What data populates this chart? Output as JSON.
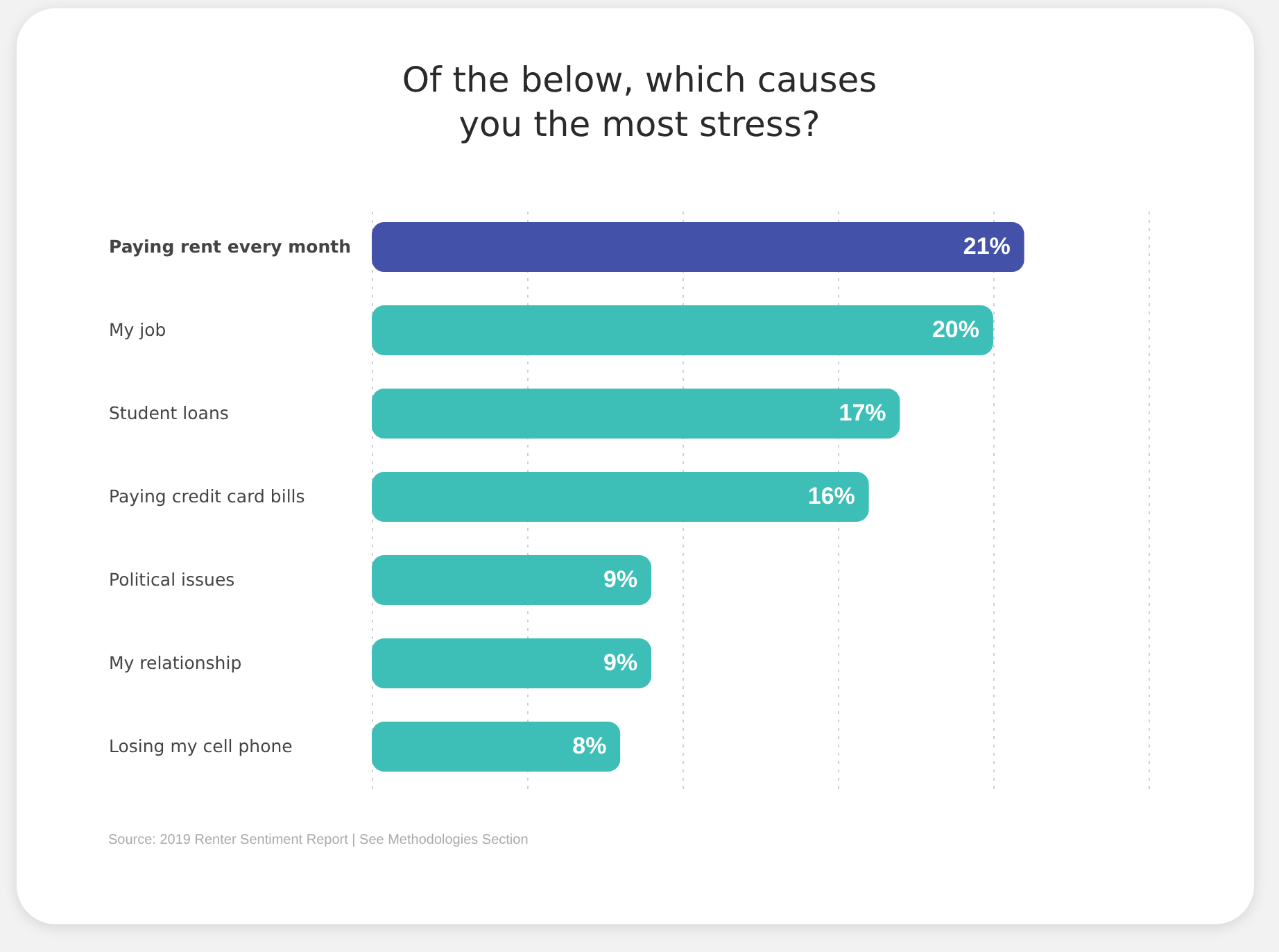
{
  "chart_data": {
    "type": "bar",
    "orientation": "horizontal",
    "title": "Of the below, which causes you the most stress?",
    "categories": [
      "Paying rent every month",
      "My job",
      "Student loans",
      "Paying credit card bills",
      "Political issues",
      "My relationship",
      "Losing my cell phone"
    ],
    "values": [
      21,
      20,
      17,
      16,
      9,
      9,
      8
    ],
    "colors": [
      "#4351a8",
      "#3dbfb8",
      "#3dbfb8",
      "#3dbfb8",
      "#3dbfb8",
      "#3dbfb8",
      "#3dbfb8"
    ],
    "value_labels": [
      "21%",
      "20%",
      "17%",
      "16%",
      "9%",
      "9%",
      "8%"
    ],
    "tick_labels": "y",
    "grid": "x",
    "annotations": [
      "Source: 2019 Renter Sentiment Report | See Methodologies Section"
    ]
  }
}
